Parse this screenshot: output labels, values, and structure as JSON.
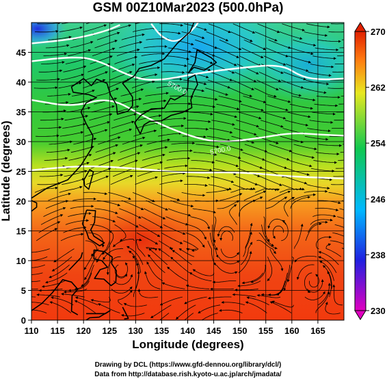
{
  "title": "GSM 00Z10Mar2023 (500.0hPa)",
  "x_axis": {
    "label": "Longitude (degrees)",
    "range": [
      110,
      170
    ],
    "ticks": [
      "110",
      "115",
      "120",
      "125",
      "130",
      "135",
      "140",
      "145",
      "150",
      "155",
      "160",
      "165"
    ]
  },
  "y_axis": {
    "label": "Latitude  (degrees)",
    "range": [
      0,
      50
    ],
    "ticks": [
      "0",
      "5",
      "10",
      "15",
      "20",
      "25",
      "30",
      "35",
      "40",
      "45"
    ]
  },
  "colorbar": {
    "range": [
      230,
      270
    ],
    "ticks": [
      "230",
      "238",
      "246",
      "254",
      "262",
      "270"
    ],
    "colors": [
      "#e000c0",
      "#2020e0",
      "#00b8ff",
      "#10c850",
      "#e8e820",
      "#ff7a10",
      "#e02000"
    ]
  },
  "contour_label": "5700.0",
  "credits": {
    "line1": "Drawing by DCL (https://www.gfd-dennou.org/library/dcl/)",
    "line2": "Data from http://database.rish.kyoto-u.ac.jp/arch/jmadata/"
  },
  "chart_data": {
    "type": "heatmap",
    "title": "GSM 00Z10Mar2023 (500.0hPa)",
    "xlabel": "Longitude (degrees)",
    "ylabel": "Latitude  (degrees)",
    "xlim": [
      110,
      170
    ],
    "ylim": [
      0,
      50
    ],
    "colorbar_range": [
      230,
      270
    ],
    "overlays": [
      "streamlines",
      "coastlines",
      "lat-lon grid",
      "geopotential height contours (white)"
    ],
    "temperature_profile_by_latitude": {
      "lat": [
        0,
        5,
        10,
        15,
        20,
        25,
        30,
        35,
        40,
        45,
        48
      ],
      "approx_value": [
        268,
        268,
        267,
        266,
        263,
        260,
        255,
        253,
        251,
        249,
        246
      ]
    },
    "features": [
      {
        "name": "cold core (blue/cyan)",
        "lon": 138,
        "lat": 48
      },
      {
        "name": "cold spot (blue)",
        "lon": 110.5,
        "lat": 49.5
      },
      {
        "name": "warm core (red)",
        "lon": 131,
        "lat": 15
      }
    ]
  }
}
